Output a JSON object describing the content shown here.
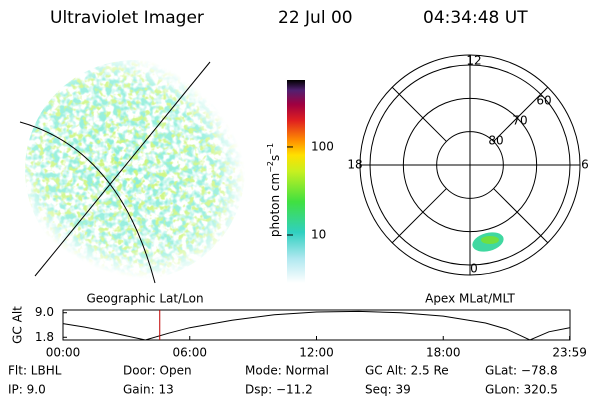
{
  "header": {
    "title": "Ultraviolet Imager",
    "date": "22 Jul 00",
    "time": "04:34:48 UT"
  },
  "colorbar": {
    "label": "photon cm",
    "exp1": "−2",
    "unit2": "s",
    "exp2": "−1",
    "scale": "log",
    "lim": [
      2.85,
      576
    ],
    "ticks": [
      10,
      100
    ]
  },
  "geo_panel": {
    "label": "Geographic Lat/Lon"
  },
  "polar_panel": {
    "label": "Apex MLat/MLT",
    "lat_lim": [
      90,
      57
    ],
    "lat_rings": [
      80,
      70,
      60
    ],
    "mlt_ticks": [
      0,
      6,
      12,
      18
    ]
  },
  "orbit": {
    "ylabel": "GC Alt",
    "xlim": [
      0,
      24
    ],
    "ylim": [
      1,
      9.8
    ],
    "yticks": [
      {
        "value": 9,
        "label": "9.0"
      },
      {
        "value": 1.8,
        "label": "1.8"
      }
    ],
    "xticks": [
      {
        "value": 0,
        "label": "00:00"
      },
      {
        "value": 6,
        "label": "06:00"
      },
      {
        "value": 12,
        "label": "12:00"
      },
      {
        "value": 18,
        "label": "18:00"
      },
      {
        "value": 23.983,
        "label": "23:59"
      }
    ],
    "x": [
      0,
      1,
      2,
      3,
      3.9,
      5,
      6,
      8,
      10,
      12,
      14,
      16,
      18,
      20,
      21,
      22.1,
      23,
      23.98
    ],
    "values": [
      5.8,
      4.8,
      3.6,
      2.2,
      1.0,
      3.0,
      4.6,
      6.8,
      8.4,
      9.2,
      9.4,
      9.0,
      8.0,
      6.0,
      4.2,
      1.0,
      3.4,
      4.6
    ],
    "color": "#000000",
    "marker": 4.58,
    "marker_color": "#c00000"
  },
  "info": [
    [
      "Flt: LBHL",
      "IP: 9.0"
    ],
    [
      "Door: Open",
      "Gain: 13"
    ],
    [
      "Mode: Normal",
      "Dsp: −11.2"
    ],
    [
      "GC Alt: 2.5 Re",
      "Seq: 39"
    ],
    [
      "GLat: −78.8",
      "GLon: 320.5"
    ]
  ]
}
